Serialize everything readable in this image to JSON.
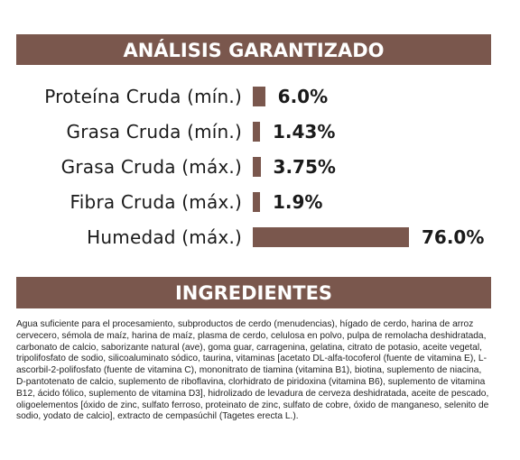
{
  "analysis": {
    "title": "ANÁLISIS GARANTIZADO",
    "rows": [
      {
        "label": "Proteína Cruda (mín.)",
        "value": "6.0%",
        "percent": 6.0
      },
      {
        "label": "Grasa Cruda (mín.)",
        "value": "1.43%",
        "percent": 1.43
      },
      {
        "label": "Grasa Cruda (máx.)",
        "value": "3.75%",
        "percent": 3.75
      },
      {
        "label": "Fibra Cruda (máx.)",
        "value": "1.9%",
        "percent": 1.9
      },
      {
        "label": "Humedad (máx.)",
        "value": "76.0%",
        "percent": 76.0
      }
    ]
  },
  "ingredients": {
    "title": "INGREDIENTES",
    "text": "Agua suficiente para el procesamiento, subproductos de cerdo (menudencias), hígado de cerdo, harina de arroz cervecero, sémola de maíz, harina de maíz, plasma de cerdo, celulosa en polvo, pulpa de remolacha deshidratada, carbonato de calcio, saborizante natural (ave), goma guar, carragenina, gelatina, citrato de potasio, aceite vegetal, tripolifosfato de sodio, silicoaluminato sódico, taurina, vitaminas [acetato DL-alfa-tocoferol (fuente de vitamina E), L-ascorbil-2-polifosfato (fuente de vitamina C), mononitrato de tiamina (vitamina B1), biotina, suplemento de niacina, D-pantotenato de calcio, suplemento de riboflavina, clorhidrato de piridoxina (vitamina B6), suplemento de vitamina B12, ácido fólico, suplemento de vitamina D3], hidrolizado de levadura de cerveza deshidratada, aceite de pescado, oligoelementos [óxido de zinc, sulfato ferroso, proteinato de zinc, sulfato de cobre, óxido de manganeso, selenito de sodio, yodato de calcio], extracto de cempasúchil (Tagetes erecta L.)."
  },
  "colors": {
    "accent": "#7a574d",
    "text": "#1a1a1a"
  }
}
